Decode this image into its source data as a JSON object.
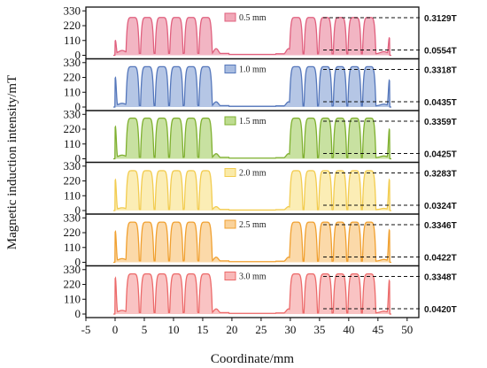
{
  "chart_data": {
    "type": "area",
    "xlabel": "Coordinate/mm",
    "ylabel": "Magnetic induction intensity/mT",
    "xlim": [
      -5,
      52
    ],
    "xticks": [
      -5,
      0,
      5,
      10,
      15,
      20,
      25,
      30,
      35,
      40,
      45,
      50
    ],
    "ylim": [
      0,
      345
    ],
    "yticks": [
      0,
      110,
      220,
      330
    ],
    "ytick_labels": [
      "0",
      "110",
      "220",
      "330"
    ],
    "grid": false,
    "legend_placement": "top-center of each panel",
    "pole_centers_left": [
      3,
      5.5,
      8,
      10.5,
      13,
      15.5
    ],
    "pole_centers_right": [
      31,
      33.5,
      36,
      38.5,
      41,
      43.5
    ],
    "series": [
      {
        "name": "0.5 mm",
        "color": "#e0607e",
        "fill": "#f0a8b8",
        "peak_mT": 281,
        "valley_mT": 55,
        "edge_left_mT": 110,
        "edge_right_mT": 130,
        "max_label": "0.3129T",
        "min_label": "0.0554T"
      },
      {
        "name": "1.0 mm",
        "color": "#5577bb",
        "fill": "#a8bce0",
        "peak_mT": 300,
        "valley_mT": 43,
        "edge_left_mT": 220,
        "edge_right_mT": 200,
        "max_label": "0.3318T",
        "min_label": "0.0435T"
      },
      {
        "name": "1.5 mm",
        "color": "#7fb030",
        "fill": "#bedc90",
        "peak_mT": 302,
        "valley_mT": 42,
        "edge_left_mT": 240,
        "edge_right_mT": 220,
        "max_label": "0.3359T",
        "min_label": "0.0425T"
      },
      {
        "name": "2.0 mm",
        "color": "#f2cc50",
        "fill": "#faeaa8",
        "peak_mT": 296,
        "valley_mT": 32,
        "edge_left_mT": 230,
        "edge_right_mT": 230,
        "max_label": "0.3283T",
        "min_label": "0.0324T"
      },
      {
        "name": "2.5 mm",
        "color": "#f0a030",
        "fill": "#fad29a",
        "peak_mT": 298,
        "valley_mT": 42,
        "edge_left_mT": 230,
        "edge_right_mT": 240,
        "max_label": "0.3346T",
        "min_label": "0.0422T"
      },
      {
        "name": "3.0 mm",
        "color": "#ec6a6a",
        "fill": "#f8b8b8",
        "peak_mT": 298,
        "valley_mT": 42,
        "edge_left_mT": 270,
        "edge_right_mT": 250,
        "max_label": "0.3348T",
        "min_label": "0.0420T"
      }
    ]
  }
}
